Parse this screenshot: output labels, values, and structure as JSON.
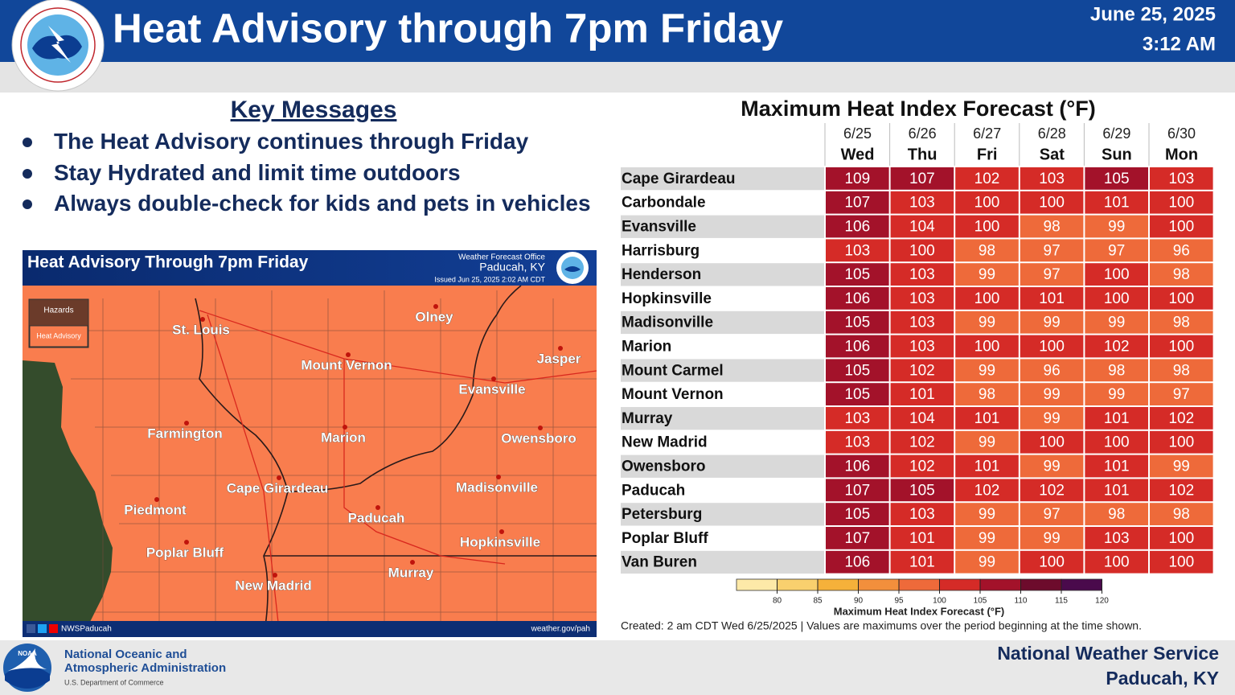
{
  "header": {
    "title": "Heat Advisory through 7pm Friday",
    "date": "June 25, 2025",
    "time": "3:12 AM"
  },
  "key_messages": {
    "title": "Key Messages",
    "items": [
      "The Heat Advisory continues through Friday",
      "Stay Hydrated and limit time outdoors",
      "Always double-check for kids and pets in vehicles"
    ]
  },
  "map": {
    "title": "Heat Advisory Through 7pm Friday",
    "office_label": "Weather Forecast Office",
    "office": "Paducah, KY",
    "issued": "Issued Jun 25, 2025 2:02 AM CDT",
    "legend_title": "Hazards",
    "legend_item": "Heat Advisory",
    "cities": [
      "St. Louis",
      "Olney",
      "Mount Vernon",
      "Jasper",
      "Evansville",
      "Farmington",
      "Marion",
      "Owensboro",
      "Cape Girardeau",
      "Madisonville",
      "Piedmont",
      "Paducah",
      "Poplar Bluff",
      "Hopkinsville",
      "New Madrid",
      "Murray"
    ],
    "social": "NWSPaducah",
    "website": "weather.gov/pah"
  },
  "table": {
    "title": "Maximum Heat Index Forecast (°F)",
    "columns": [
      {
        "date": "6/25",
        "day": "Wed"
      },
      {
        "date": "6/26",
        "day": "Thu"
      },
      {
        "date": "6/27",
        "day": "Fri"
      },
      {
        "date": "6/28",
        "day": "Sat"
      },
      {
        "date": "6/29",
        "day": "Sun"
      },
      {
        "date": "6/30",
        "day": "Mon"
      }
    ],
    "rows": [
      {
        "city": "Cape Girardeau",
        "values": [
          109,
          107,
          102,
          103,
          105,
          103
        ]
      },
      {
        "city": "Carbondale",
        "values": [
          107,
          103,
          100,
          100,
          101,
          100
        ]
      },
      {
        "city": "Evansville",
        "values": [
          106,
          104,
          100,
          98,
          99,
          100
        ]
      },
      {
        "city": "Harrisburg",
        "values": [
          103,
          100,
          98,
          97,
          97,
          96
        ]
      },
      {
        "city": "Henderson",
        "values": [
          105,
          103,
          99,
          97,
          100,
          98
        ]
      },
      {
        "city": "Hopkinsville",
        "values": [
          106,
          103,
          100,
          101,
          100,
          100
        ]
      },
      {
        "city": "Madisonville",
        "values": [
          105,
          103,
          99,
          99,
          99,
          98
        ]
      },
      {
        "city": "Marion",
        "values": [
          106,
          103,
          100,
          100,
          102,
          100
        ]
      },
      {
        "city": "Mount Carmel",
        "values": [
          105,
          102,
          99,
          96,
          98,
          98
        ]
      },
      {
        "city": "Mount Vernon",
        "values": [
          105,
          101,
          98,
          99,
          99,
          97
        ]
      },
      {
        "city": "Murray",
        "values": [
          103,
          104,
          101,
          99,
          101,
          102
        ]
      },
      {
        "city": "New Madrid",
        "values": [
          103,
          102,
          99,
          100,
          100,
          100
        ]
      },
      {
        "city": "Owensboro",
        "values": [
          106,
          102,
          101,
          99,
          101,
          99
        ]
      },
      {
        "city": "Paducah",
        "values": [
          107,
          105,
          102,
          102,
          101,
          102
        ]
      },
      {
        "city": "Petersburg",
        "values": [
          105,
          103,
          99,
          97,
          98,
          98
        ]
      },
      {
        "city": "Poplar Bluff",
        "values": [
          107,
          101,
          99,
          99,
          103,
          100
        ]
      },
      {
        "city": "Van Buren",
        "values": [
          106,
          101,
          99,
          100,
          100,
          100
        ]
      }
    ],
    "legend": {
      "title": "Maximum Heat Index Forecast (°F)",
      "ticks": [
        80,
        85,
        90,
        95,
        100,
        105,
        110,
        115,
        120
      ],
      "colors": [
        "#fde9a8",
        "#f9d06e",
        "#f5b13a",
        "#f28f3c",
        "#ee6a3a",
        "#d52b27",
        "#a3122a",
        "#6d0b2c",
        "#4a0a4c"
      ]
    },
    "note": "Created: 2 am CDT Wed 6/25/2025  |  Values are maximums over the period beginning at the time shown."
  },
  "footer": {
    "agency_line1": "National Oceanic and",
    "agency_line2": "Atmospheric Administration",
    "department": "U.S. Department of Commerce",
    "office_line1": "National Weather Service",
    "office_line2": "Paducah, KY",
    "logo_text": "NOAA"
  }
}
